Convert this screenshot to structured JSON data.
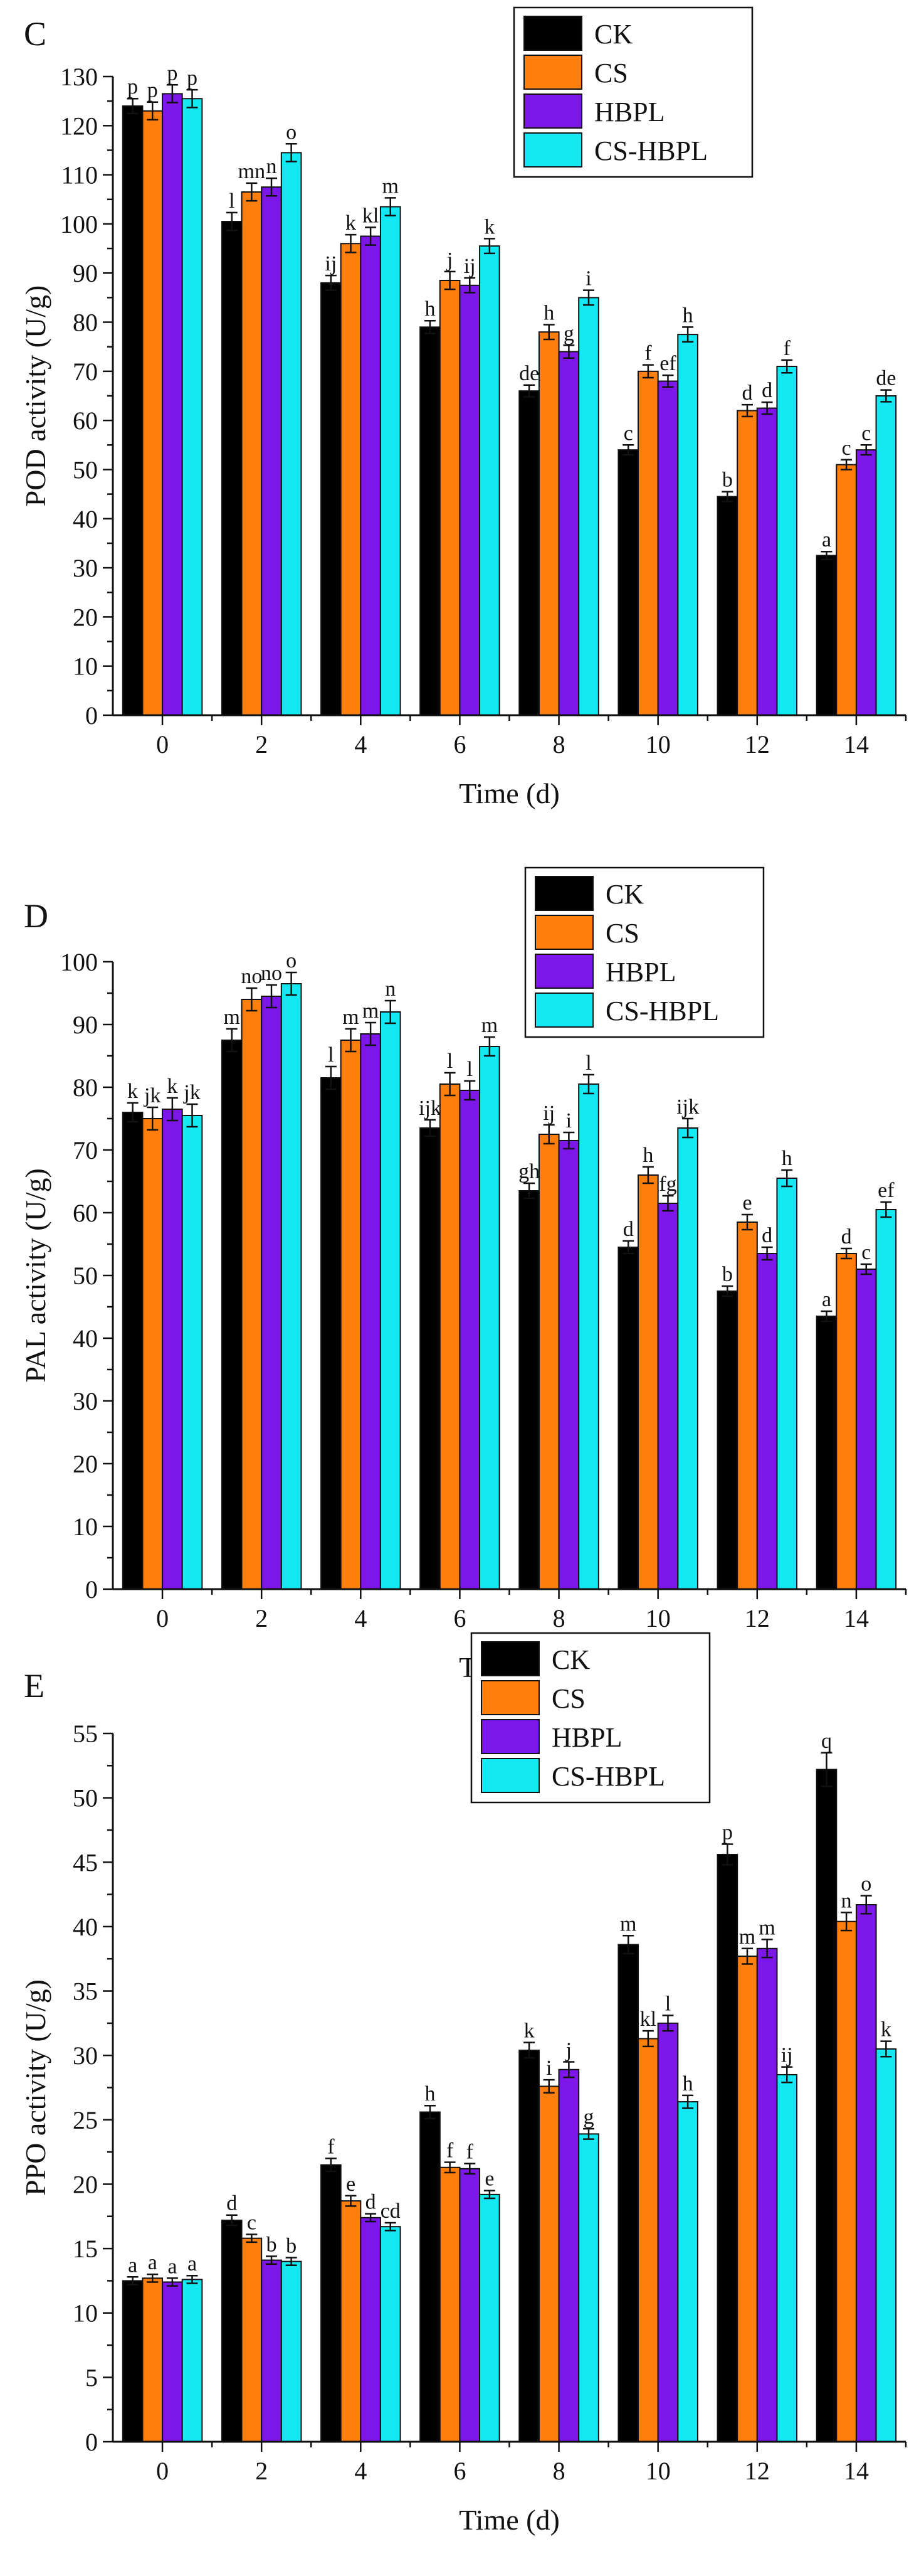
{
  "figure": {
    "description_free": true
  },
  "chart_data": [
    {
      "type": "bar",
      "panel_label": "C",
      "title": "",
      "xlabel": "Time (d)",
      "ylabel": "POD activity (U/g)",
      "ylim": [
        0,
        130
      ],
      "ytick_step": 10,
      "categories": [
        "0",
        "2",
        "4",
        "6",
        "8",
        "10",
        "12",
        "14"
      ],
      "legend_position": "top-center",
      "series": [
        {
          "name": "CK",
          "color": "#000000",
          "values": [
            124,
            100.5,
            88,
            79,
            66,
            54,
            44.5,
            32.5
          ],
          "errors": [
            1.5,
            1.8,
            1.5,
            1.3,
            1.2,
            1.0,
            1.0,
            0.8
          ],
          "labels": [
            "p",
            "l",
            "ij",
            "h",
            "de",
            "c",
            "b",
            "a"
          ]
        },
        {
          "name": "CS",
          "color": "#ff7f0e",
          "values": [
            123,
            106.5,
            96,
            88.5,
            78,
            70,
            62,
            51
          ],
          "errors": [
            1.8,
            1.8,
            1.8,
            1.8,
            1.5,
            1.3,
            1.2,
            1.0
          ],
          "labels": [
            "p",
            "mn",
            "k",
            "j",
            "h",
            "f",
            "d",
            "c"
          ]
        },
        {
          "name": "HBPL",
          "color": "#7d16e8",
          "values": [
            126.5,
            107.5,
            97.5,
            87.5,
            74,
            68,
            62.5,
            54
          ],
          "errors": [
            1.8,
            1.8,
            1.8,
            1.5,
            1.3,
            1.2,
            1.2,
            1.0
          ],
          "labels": [
            "p",
            "n",
            "kl",
            "ij",
            "g",
            "ef",
            "d",
            "c"
          ]
        },
        {
          "name": "CS-HBPL",
          "color": "#14e8f2",
          "values": [
            125.5,
            114.5,
            103.5,
            95.5,
            85,
            77.5,
            71,
            65
          ],
          "errors": [
            1.8,
            1.8,
            1.8,
            1.5,
            1.5,
            1.5,
            1.3,
            1.2
          ],
          "labels": [
            "p",
            "o",
            "m",
            "k",
            "i",
            "h",
            "f",
            "de"
          ]
        }
      ]
    },
    {
      "type": "bar",
      "panel_label": "D",
      "title": "",
      "xlabel": "Time (d)",
      "ylabel": "PAL activity (U/g)",
      "ylim": [
        0,
        100
      ],
      "ytick_step": 10,
      "categories": [
        "0",
        "2",
        "4",
        "6",
        "8",
        "10",
        "12",
        "14"
      ],
      "legend_position": "top-center",
      "series": [
        {
          "name": "CK",
          "color": "#000000",
          "values": [
            76,
            87.5,
            81.5,
            73.5,
            63.5,
            54.5,
            47.5,
            43.5
          ],
          "errors": [
            1.5,
            1.8,
            1.8,
            1.3,
            1.2,
            1.0,
            0.8,
            0.8
          ],
          "labels": [
            "k",
            "m",
            "l",
            "ijk",
            "gh",
            "d",
            "b",
            "a"
          ]
        },
        {
          "name": "CS",
          "color": "#ff7f0e",
          "values": [
            75,
            94,
            87.5,
            80.5,
            72.5,
            66,
            58.5,
            53.5
          ],
          "errors": [
            1.8,
            1.8,
            1.8,
            1.8,
            1.5,
            1.3,
            1.2,
            0.8
          ],
          "labels": [
            "jk",
            "no",
            "m",
            "l",
            "ij",
            "h",
            "e",
            "d"
          ]
        },
        {
          "name": "HBPL",
          "color": "#7d16e8",
          "values": [
            76.5,
            94.5,
            88.5,
            79.5,
            71.5,
            61.5,
            53.5,
            51
          ],
          "errors": [
            1.8,
            1.8,
            1.8,
            1.5,
            1.3,
            1.2,
            1.0,
            0.8
          ],
          "labels": [
            "k",
            "no",
            "m",
            "l",
            "i",
            "fg",
            "d",
            "c"
          ]
        },
        {
          "name": "CS-HBPL",
          "color": "#14e8f2",
          "values": [
            75.5,
            96.5,
            92,
            86.5,
            80.5,
            73.5,
            65.5,
            60.5
          ],
          "errors": [
            1.8,
            1.8,
            1.8,
            1.5,
            1.5,
            1.5,
            1.3,
            1.2
          ],
          "labels": [
            "jk",
            "o",
            "n",
            "m",
            "l",
            "ijk",
            "h",
            "ef"
          ]
        }
      ]
    },
    {
      "type": "bar",
      "panel_label": "E",
      "title": "",
      "xlabel": "Time (d)",
      "ylabel": "PPO activity (U/g)",
      "ylim": [
        0,
        55
      ],
      "ytick_step": 5,
      "categories": [
        "0",
        "2",
        "4",
        "6",
        "8",
        "10",
        "12",
        "14"
      ],
      "legend_position": "top-center",
      "series": [
        {
          "name": "CK",
          "color": "#000000",
          "values": [
            12.5,
            17.2,
            21.5,
            25.6,
            30.4,
            38.6,
            45.6,
            52.2
          ],
          "errors": [
            0.3,
            0.4,
            0.5,
            0.5,
            0.6,
            0.7,
            0.8,
            1.3
          ],
          "labels": [
            "a",
            "d",
            "f",
            "h",
            "k",
            "m",
            "p",
            "q"
          ]
        },
        {
          "name": "CS",
          "color": "#ff7f0e",
          "values": [
            12.7,
            15.8,
            18.7,
            21.3,
            27.6,
            31.3,
            37.7,
            40.4
          ],
          "errors": [
            0.3,
            0.3,
            0.4,
            0.4,
            0.5,
            0.6,
            0.6,
            0.7
          ],
          "labels": [
            "a",
            "c",
            "e",
            "f",
            "i",
            "kl",
            "m",
            "n"
          ]
        },
        {
          "name": "HBPL",
          "color": "#7d16e8",
          "values": [
            12.4,
            14.1,
            17.4,
            21.2,
            28.9,
            32.5,
            38.3,
            41.7
          ],
          "errors": [
            0.3,
            0.3,
            0.3,
            0.4,
            0.6,
            0.6,
            0.7,
            0.7
          ],
          "labels": [
            "a",
            "b",
            "d",
            "f",
            "j",
            "l",
            "m",
            "o"
          ]
        },
        {
          "name": "CS-HBPL",
          "color": "#14e8f2",
          "values": [
            12.6,
            14.0,
            16.7,
            19.2,
            23.9,
            26.4,
            28.5,
            30.5
          ],
          "errors": [
            0.3,
            0.3,
            0.3,
            0.3,
            0.4,
            0.5,
            0.6,
            0.6
          ],
          "labels": [
            "a",
            "b",
            "cd",
            "e",
            "g",
            "h",
            "ij",
            "k"
          ]
        }
      ]
    }
  ]
}
